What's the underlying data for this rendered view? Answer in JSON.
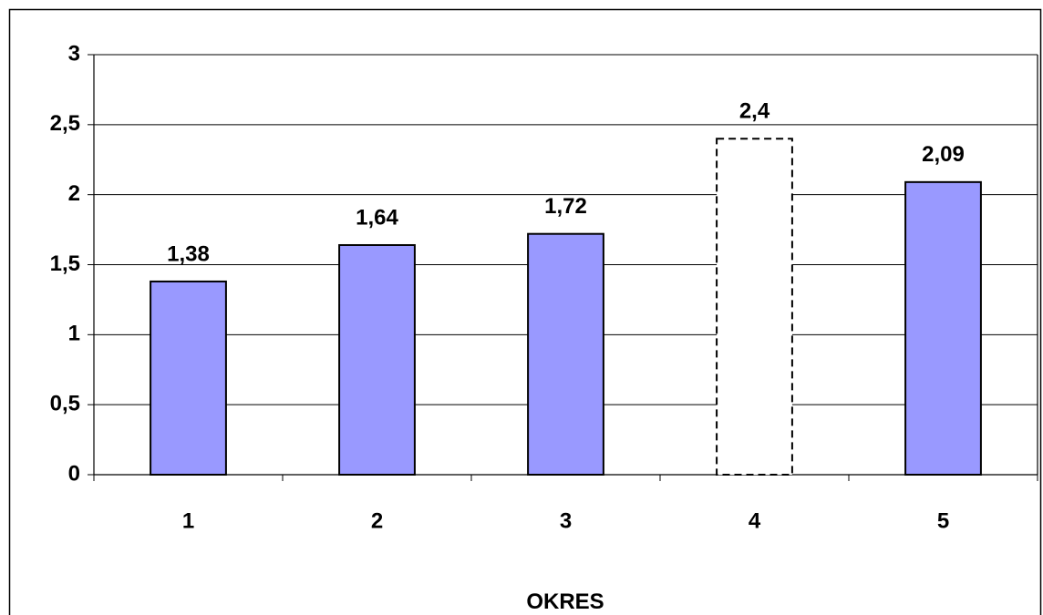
{
  "chart_data": {
    "type": "bar",
    "categories": [
      "1",
      "2",
      "3",
      "4",
      "5"
    ],
    "values": [
      1.38,
      1.64,
      1.72,
      2.4,
      2.09
    ],
    "value_labels": [
      "1,38",
      "1,64",
      "1,72",
      "2,4",
      "2,09"
    ],
    "colors": [
      "#9999ff",
      "#9999ff",
      "#9999ff",
      "#ffffff",
      "#9999ff"
    ],
    "bar_styles": [
      "solid",
      "solid",
      "solid",
      "dashed",
      "solid"
    ],
    "x_label": "OKRES",
    "ylim": [
      0,
      3
    ],
    "yticks": [
      0,
      {
        "value": 0.5,
        "label": "0,5"
      },
      1,
      {
        "value": 1.5,
        "label": "1,5"
      },
      2,
      {
        "value": 2.5,
        "label": "2,5"
      },
      3
    ],
    "grid": true
  }
}
